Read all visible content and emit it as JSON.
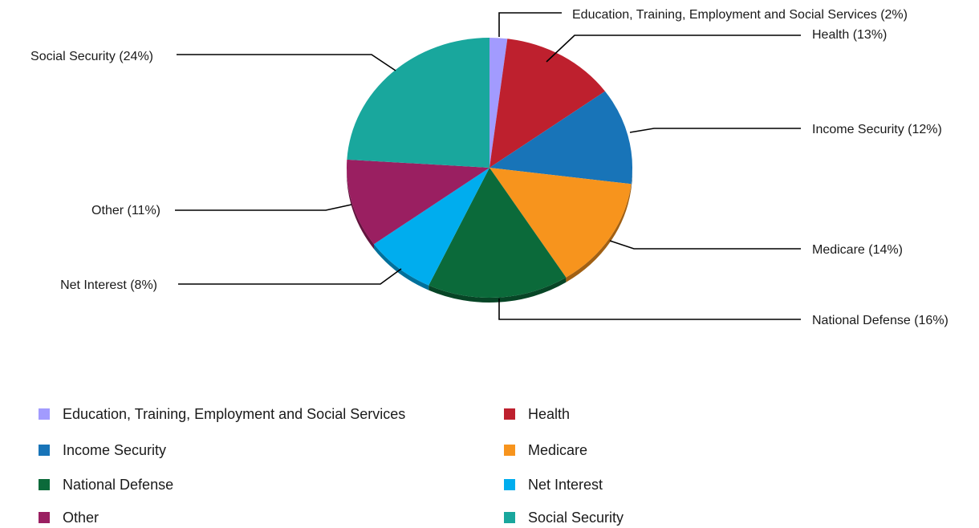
{
  "chart_data": {
    "type": "pie",
    "title": "",
    "slices": [
      {
        "name": "Education, Training, Employment and Social Services",
        "value": 2,
        "label": "Education, Training, Employment and Social Services (2%)",
        "color": "#a29bfe"
      },
      {
        "name": "Health",
        "value": 13,
        "label": "Health (13%)",
        "color": "#be202e"
      },
      {
        "name": "Income Security",
        "value": 12,
        "label": "Income Security (12%)",
        "color": "#1874b8"
      },
      {
        "name": "Medicare",
        "value": 14,
        "label": "Medicare (14%)",
        "color": "#f7941d"
      },
      {
        "name": "National Defense",
        "value": 16,
        "label": "National Defense (16%)",
        "color": "#0b6a3a"
      },
      {
        "name": "Net Interest",
        "value": 8,
        "label": "Net Interest (8%)",
        "color": "#00adee"
      },
      {
        "name": "Other",
        "value": 11,
        "label": "Other (11%)",
        "color": "#9a1f61"
      },
      {
        "name": "Social Security",
        "value": 24,
        "label": "Social Security (24%)",
        "color": "#19a79d"
      }
    ],
    "legend_position": "bottom"
  }
}
